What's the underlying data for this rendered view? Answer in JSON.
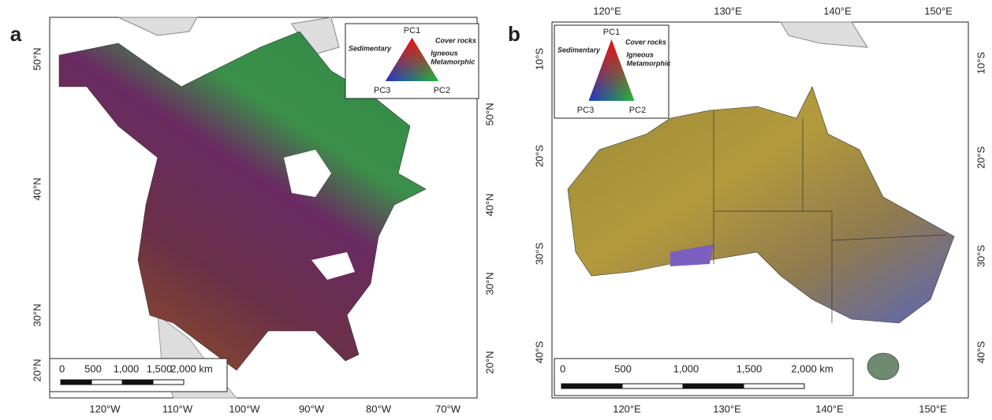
{
  "panels": [
    {
      "label": "a",
      "left_ticks": [
        "50°N",
        "40°N",
        "30°N",
        "20°N"
      ],
      "right_ticks": [
        "50°N",
        "40°N",
        "30°N",
        "20°N"
      ],
      "top_ticks": [],
      "bottom_ticks": [
        "120°W",
        "110°W",
        "100°W",
        "90°W",
        "80°W",
        "70°W"
      ],
      "legend": {
        "top": "PC1",
        "left": "PC3",
        "right": "PC2",
        "sedimentary": "Sedimentary",
        "cover": "Cover rocks",
        "igneous": "Igneous",
        "metamorphic": "Metamorphic"
      },
      "scale": [
        "0",
        "500",
        "1,000",
        "1,500",
        "2,000 km"
      ]
    },
    {
      "label": "b",
      "left_ticks": [
        "10°S",
        "20°S",
        "30°S",
        "40°S"
      ],
      "right_ticks": [
        "10°S",
        "20°S",
        "30°S",
        "40°S"
      ],
      "top_ticks": [
        "120°E",
        "130°E",
        "140°E",
        "150°E"
      ],
      "bottom_ticks": [
        "120°E",
        "130°E",
        "140°E",
        "150°E"
      ],
      "legend": {
        "top": "PC1",
        "left": "PC3",
        "right": "PC2",
        "sedimentary": "Sedimentary",
        "cover": "Cover rocks",
        "igneous": "Igneous",
        "metamorphic": "Metamorphic"
      },
      "scale": [
        "0",
        "500",
        "1,000",
        "1,500",
        "2,000 km"
      ]
    }
  ]
}
